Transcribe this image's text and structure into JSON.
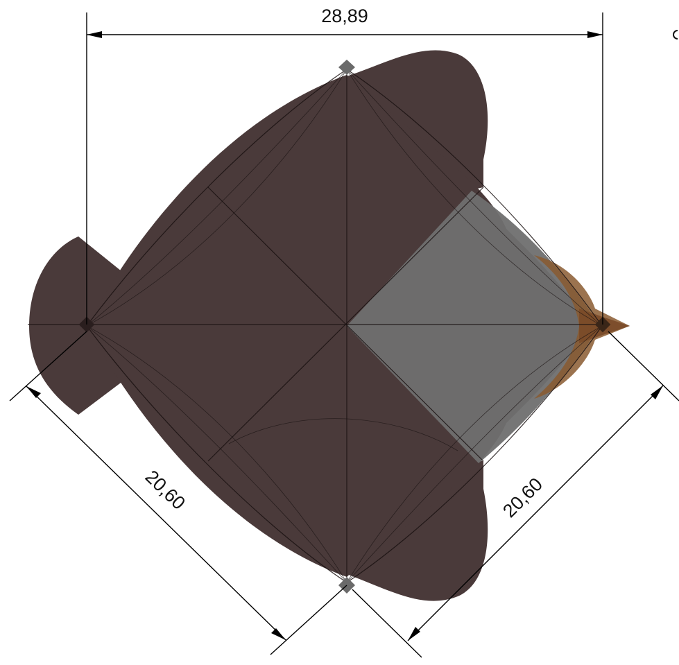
{
  "dimensions": {
    "top_width": "28,89",
    "lower_left_diagonal": "20,60",
    "lower_right_diagonal": "20,60"
  },
  "colors": {
    "body": "#4a3a3a",
    "glass": "#6f6f6f",
    "accent_brown": "#8a5a30",
    "marker": "#6a6a6a",
    "dimension_lines": "#000000",
    "background": "#ffffff"
  }
}
